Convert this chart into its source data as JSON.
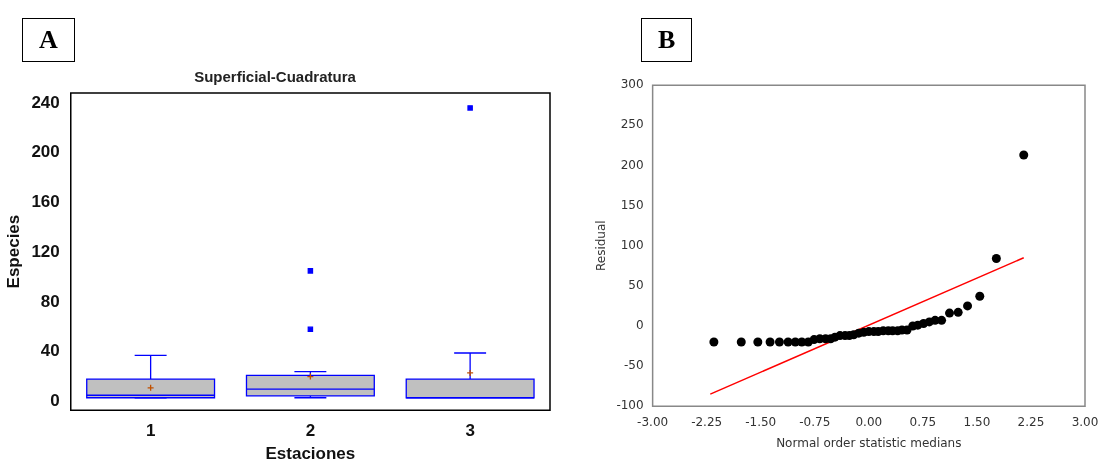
{
  "chart_data": [
    {
      "type": "box",
      "title": "Superficial-Cuadratura",
      "xlabel": "Estaciones",
      "ylabel": "Especies",
      "categories": [
        "1",
        "2",
        "3"
      ],
      "ylim": [
        -7,
        248
      ],
      "yticks": [
        0,
        40,
        80,
        120,
        160,
        200,
        240
      ],
      "grid": false,
      "marker": "square",
      "annotations": [
        "A"
      ],
      "series": [
        {
          "color": "#c0c0c0",
          "boxes": [
            {
              "low": 3,
              "q1": 3,
              "median": 5,
              "q3": 18,
              "high": 37,
              "mean": 11
            },
            {
              "low": 3,
              "q1": 4.5,
              "median": 10,
              "q3": 21,
              "high": 24,
              "mean": 20,
              "outliers": [
                58,
                105
              ]
            },
            {
              "low": 3,
              "q1": 3,
              "median": 3,
              "q3": 18,
              "high": 39,
              "mean": 23,
              "outliers": [
                236
              ]
            }
          ]
        }
      ]
    },
    {
      "type": "scatter",
      "xlabel": "Normal order statistic medians",
      "ylabel": "Residual",
      "xlim": [
        -3,
        3
      ],
      "ylim": [
        -100,
        300
      ],
      "xticks": [
        {
          "value": -3,
          "label": "-3.00"
        },
        {
          "value": -2.25,
          "label": "-2.25"
        },
        {
          "value": -1.5,
          "label": "-1.50"
        },
        {
          "value": -0.75,
          "label": "-0.75"
        },
        {
          "value": 0,
          "label": "0.00"
        },
        {
          "value": 0.75,
          "label": "0.75"
        },
        {
          "value": 1.5,
          "label": "1.50"
        },
        {
          "value": 2.25,
          "label": "2.25"
        },
        {
          "value": 3,
          "label": "3.00"
        }
      ],
      "yticks": [
        -100,
        -50,
        0,
        50,
        100,
        150,
        200,
        250,
        300
      ],
      "grid": false,
      "marker": "circle",
      "annotations": [
        "B"
      ],
      "series": [
        {
          "color": "#000000",
          "x": [
            -2.15,
            -1.77,
            -1.54,
            -1.37,
            -1.24,
            -1.12,
            -1.02,
            -0.93,
            -0.84,
            -0.76,
            -0.68,
            -0.6,
            -0.53,
            -0.47,
            -0.4,
            -0.33,
            -0.27,
            -0.21,
            -0.14,
            -0.07,
            0,
            0.07,
            0.13,
            0.2,
            0.27,
            0.33,
            0.4,
            0.46,
            0.53,
            0.61,
            0.68,
            0.76,
            0.84,
            0.92,
            1.01,
            1.12,
            1.24,
            1.37,
            1.54,
            1.77,
            2.15
          ],
          "values": [
            -20,
            -20,
            -20,
            -20,
            -20,
            -20,
            -20,
            -20,
            -20,
            -17,
            -16,
            -16,
            -16,
            -14,
            -12,
            -12,
            -12,
            -11,
            -9,
            -8,
            -7,
            -7,
            -7,
            -6,
            -6,
            -6,
            -6,
            -5,
            -5,
            0,
            1,
            3,
            5,
            7,
            7,
            16,
            17,
            25,
            37,
            84,
            213
          ]
        },
        {
          "type": "line",
          "marker": "none",
          "color": "#ff0000",
          "x": [
            -2.2,
            2.15
          ],
          "values": [
            -85,
            85
          ]
        }
      ]
    }
  ]
}
